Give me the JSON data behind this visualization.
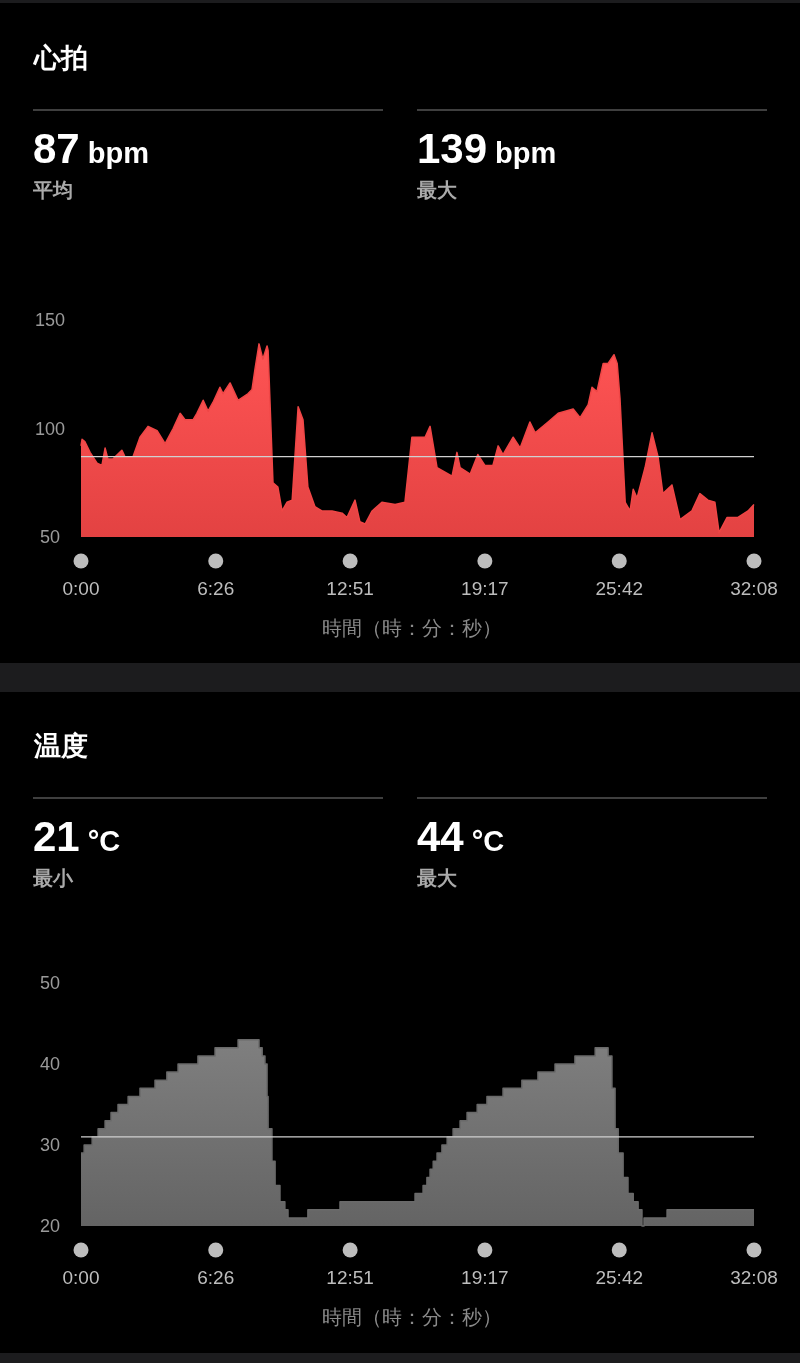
{
  "chart_data": [
    {
      "type": "area",
      "title": "心拍",
      "xlabel": "時間（時：分：秒）",
      "annotations": [
        "87 bpm",
        "平均",
        "139 bpm",
        "最大"
      ],
      "xlim": [
        0,
        1928
      ],
      "xticks": [
        {
          "value": 0,
          "label": "0:00"
        },
        {
          "value": 386,
          "label": "6:26"
        },
        {
          "value": 771,
          "label": "12:51"
        },
        {
          "value": 1157,
          "label": "19:17"
        },
        {
          "value": 1542,
          "label": "25:42"
        },
        {
          "value": 1928,
          "label": "32:08"
        }
      ],
      "ylim": [
        50,
        150
      ],
      "yticks": [
        50,
        100,
        150
      ],
      "ref_lines": [
        {
          "axis": "y",
          "value": 87,
          "color": "#d0d0d0"
        }
      ],
      "series": [
        {
          "color": "#f04646",
          "x": [
            0,
            3,
            11,
            26,
            46,
            60,
            69,
            77,
            92,
            117,
            126,
            149,
            169,
            192,
            218,
            241,
            264,
            284,
            298,
            321,
            332,
            350,
            364,
            378,
            398,
            407,
            427,
            450,
            478,
            490,
            499,
            510,
            521,
            533,
            536,
            550,
            564,
            576,
            590,
            605,
            622,
            636,
            650,
            670,
            690,
            719,
            748,
            762,
            785,
            799,
            814,
            834,
            862,
            900,
            928,
            948,
            986,
            1000,
            1020,
            1063,
            1077,
            1086,
            1115,
            1137,
            1157,
            1180,
            1195,
            1209,
            1238,
            1258,
            1286,
            1301,
            1338,
            1367,
            1410,
            1430,
            1453,
            1464,
            1478,
            1496,
            1510,
            1527,
            1536,
            1544,
            1559,
            1573,
            1582,
            1593,
            1616,
            1636,
            1653,
            1667,
            1693,
            1716,
            1750,
            1773,
            1796,
            1816,
            1828,
            1851,
            1882,
            1911,
            1928
          ],
          "values": [
            92,
            95,
            94,
            89,
            84,
            83,
            91,
            86,
            86,
            90,
            87,
            87,
            96,
            101,
            99,
            93,
            100,
            107,
            104,
            104,
            107,
            113,
            108,
            112,
            119,
            116,
            121,
            113,
            116,
            118,
            128,
            139,
            132,
            138,
            136,
            75,
            73,
            62,
            66,
            67,
            110,
            104,
            73,
            64,
            62,
            62,
            61,
            59,
            67,
            57,
            56,
            62,
            66,
            65,
            66,
            96,
            96,
            101,
            82,
            78,
            89,
            82,
            79,
            88,
            83,
            83,
            92,
            88,
            96,
            91,
            103,
            98,
            103,
            107,
            109,
            105,
            111,
            119,
            117,
            130,
            130,
            134,
            130,
            114,
            66,
            62,
            72,
            68,
            82,
            98,
            87,
            70,
            74,
            58,
            62,
            70,
            67,
            66,
            52,
            59,
            59,
            62,
            65
          ]
        }
      ]
    },
    {
      "type": "step",
      "title": "温度",
      "xlabel": "時間（時：分：秒）",
      "annotations": [
        "21 °C",
        "最小",
        "44 °C",
        "最大"
      ],
      "xlim": [
        0,
        1928
      ],
      "xticks": [
        {
          "value": 0,
          "label": "0:00"
        },
        {
          "value": 386,
          "label": "6:26"
        },
        {
          "value": 771,
          "label": "12:51"
        },
        {
          "value": 1157,
          "label": "19:17"
        },
        {
          "value": 1542,
          "label": "25:42"
        },
        {
          "value": 1928,
          "label": "32:08"
        }
      ],
      "ylim": [
        20,
        50
      ],
      "yticks": [
        20,
        30,
        40,
        50
      ],
      "ref_lines": [
        {
          "axis": "y",
          "value": 31,
          "color": "#d0d0d0"
        }
      ],
      "series": [
        {
          "color": "#6a6a6a",
          "x": [
            0,
            9,
            32,
            49,
            69,
            86,
            106,
            135,
            169,
            212,
            246,
            278,
            335,
            384,
            450,
            510,
            519,
            527,
            533,
            536,
            547,
            556,
            570,
            584,
            593,
            650,
            742,
            957,
            980,
            991,
            1000,
            1009,
            1020,
            1034,
            1049,
            1066,
            1086,
            1106,
            1135,
            1163,
            1209,
            1263,
            1309,
            1358,
            1415,
            1473,
            1510,
            1521,
            1530,
            1539,
            1553,
            1567,
            1582,
            1596,
            1607,
            1613,
            1679,
            1928
          ],
          "values": [
            29,
            30,
            31,
            32,
            33,
            34,
            35,
            36,
            37,
            38,
            39,
            40,
            41,
            42,
            43,
            42,
            41,
            40,
            36,
            32,
            28,
            25,
            23,
            22,
            21,
            22,
            23,
            24,
            25,
            26,
            27,
            28,
            29,
            30,
            31,
            32,
            33,
            34,
            35,
            36,
            37,
            38,
            39,
            40,
            41,
            42,
            41,
            37,
            32,
            29,
            26,
            24,
            23,
            22,
            20,
            21,
            22,
            22
          ]
        }
      ]
    }
  ]
}
